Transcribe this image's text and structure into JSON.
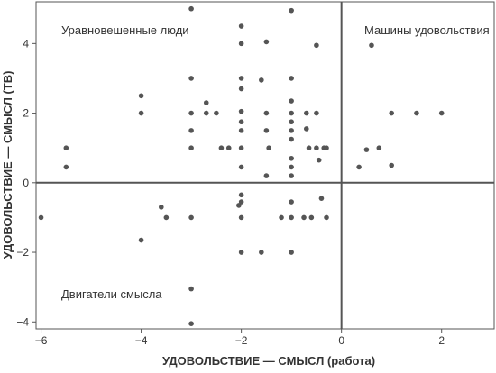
{
  "chart_data": {
    "type": "scatter",
    "xlabel": "УДОВОЛЬСТВИЕ — СМЫСЛ (работа)",
    "ylabel": "УДОВОЛЬСТВИЕ — СМЫСЛ (ТВ)",
    "xlim": [
      -6.1,
      3.05
    ],
    "ylim": [
      -4.2,
      5.2
    ],
    "x_ticks": [
      -6,
      -4,
      -2,
      0,
      2
    ],
    "y_ticks": [
      -4,
      -2,
      0,
      2,
      4
    ],
    "quadrant_labels": {
      "top_left": "Уравновешенные люди",
      "top_right": "Машины удовольствия",
      "bottom_left": "Двигатели смысла"
    },
    "grid": false,
    "point_color": "#555555",
    "points": [
      [
        -6.0,
        -1.0
      ],
      [
        -5.5,
        1.0
      ],
      [
        -5.5,
        0.45
      ],
      [
        -4.0,
        2.5
      ],
      [
        -4.0,
        2.0
      ],
      [
        -4.0,
        -1.65
      ],
      [
        -3.6,
        -0.7
      ],
      [
        -3.5,
        -1.0
      ],
      [
        -3.0,
        5.0
      ],
      [
        -3.0,
        3.0
      ],
      [
        -3.0,
        2.0
      ],
      [
        -3.0,
        1.5
      ],
      [
        -3.0,
        1.0
      ],
      [
        -3.0,
        -1.0
      ],
      [
        -3.0,
        -3.05
      ],
      [
        -3.0,
        -4.05
      ],
      [
        -2.7,
        2.3
      ],
      [
        -2.7,
        2.0
      ],
      [
        -2.5,
        2.0
      ],
      [
        -2.4,
        1.0
      ],
      [
        -2.25,
        1.0
      ],
      [
        -2.05,
        -0.65
      ],
      [
        -2.0,
        4.5
      ],
      [
        -2.0,
        4.0
      ],
      [
        -2.0,
        3.0
      ],
      [
        -2.0,
        2.7
      ],
      [
        -2.0,
        2.05
      ],
      [
        -2.0,
        1.75
      ],
      [
        -2.0,
        1.5
      ],
      [
        -2.0,
        1.0
      ],
      [
        -2.0,
        0.45
      ],
      [
        -2.0,
        -0.35
      ],
      [
        -2.0,
        -0.55
      ],
      [
        -2.0,
        -1.0
      ],
      [
        -2.0,
        -2.0
      ],
      [
        -1.6,
        2.95
      ],
      [
        -1.6,
        -2.0
      ],
      [
        -1.5,
        4.05
      ],
      [
        -1.5,
        2.0
      ],
      [
        -1.5,
        1.5
      ],
      [
        -1.45,
        1.0
      ],
      [
        -1.5,
        0.2
      ],
      [
        -1.2,
        -1.0
      ],
      [
        -1.0,
        4.95
      ],
      [
        -1.0,
        3.0
      ],
      [
        -1.0,
        2.35
      ],
      [
        -1.0,
        2.0
      ],
      [
        -1.0,
        1.75
      ],
      [
        -1.0,
        1.5
      ],
      [
        -1.0,
        1.25
      ],
      [
        -1.0,
        0.7
      ],
      [
        -1.0,
        0.45
      ],
      [
        -1.0,
        0.2
      ],
      [
        -1.0,
        -0.55
      ],
      [
        -1.0,
        -1.0
      ],
      [
        -1.0,
        -2.0
      ],
      [
        -0.75,
        -1.0
      ],
      [
        -0.7,
        2.0
      ],
      [
        -0.7,
        1.55
      ],
      [
        -0.65,
        1.0
      ],
      [
        -0.6,
        -1.0
      ],
      [
        -0.5,
        3.95
      ],
      [
        -0.5,
        2.0
      ],
      [
        -0.5,
        1.0
      ],
      [
        -0.45,
        0.65
      ],
      [
        -0.4,
        -0.45
      ],
      [
        -0.35,
        1.0
      ],
      [
        -0.3,
        1.0
      ],
      [
        -0.3,
        -1.0
      ],
      [
        0.35,
        0.45
      ],
      [
        0.5,
        0.95
      ],
      [
        0.6,
        3.95
      ],
      [
        0.75,
        1.0
      ],
      [
        1.0,
        2.0
      ],
      [
        1.0,
        0.5
      ],
      [
        1.5,
        2.0
      ],
      [
        2.0,
        2.0
      ]
    ]
  }
}
